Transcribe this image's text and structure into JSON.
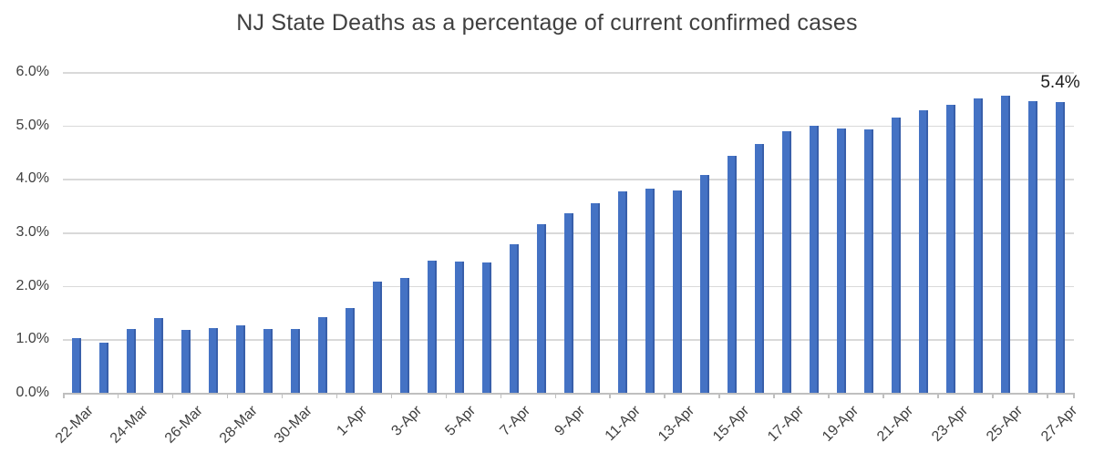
{
  "chart_data": {
    "type": "bar",
    "title": "NJ State Deaths as a percentage of current confirmed cases",
    "categories": [
      "22-Mar",
      "23-Mar",
      "24-Mar",
      "25-Mar",
      "26-Mar",
      "27-Mar",
      "28-Mar",
      "29-Mar",
      "30-Mar",
      "31-Mar",
      "1-Apr",
      "2-Apr",
      "3-Apr",
      "4-Apr",
      "5-Apr",
      "6-Apr",
      "7-Apr",
      "8-Apr",
      "9-Apr",
      "10-Apr",
      "11-Apr",
      "12-Apr",
      "13-Apr",
      "14-Apr",
      "15-Apr",
      "16-Apr",
      "17-Apr",
      "18-Apr",
      "19-Apr",
      "20-Apr",
      "21-Apr",
      "22-Apr",
      "23-Apr",
      "24-Apr",
      "25-Apr",
      "26-Apr",
      "27-Apr"
    ],
    "values": [
      1.03,
      0.93,
      1.19,
      1.39,
      1.17,
      1.21,
      1.26,
      1.19,
      1.19,
      1.42,
      1.59,
      2.08,
      2.15,
      2.47,
      2.45,
      2.43,
      2.77,
      3.16,
      3.36,
      3.55,
      3.76,
      3.81,
      3.79,
      4.08,
      4.44,
      4.66,
      4.89,
      5.0,
      4.94,
      4.93,
      5.15,
      5.28,
      5.38,
      5.51,
      5.56,
      5.45,
      5.44
    ],
    "unit": "%",
    "xlabel": "",
    "ylabel": "",
    "ylim": [
      0,
      6
    ],
    "ytick_step": 1.0,
    "ytick_labels": [
      "0.0%",
      "1.0%",
      "2.0%",
      "3.0%",
      "4.0%",
      "5.0%",
      "6.0%"
    ],
    "xtick_label_interval": 2,
    "grid": "horizontal",
    "legend": "none",
    "annotation": {
      "text": "5.4%",
      "category": "27-Apr"
    },
    "colors": {
      "bar": "#4472C4",
      "bar_edge_shade": "rgba(20,40,90,0.25)",
      "gridline": "#D9D9D9",
      "axis": "#BFBFBF",
      "tick_text": "#404040",
      "title_text": "#404040",
      "annotation_text": "#1a1a1a",
      "background": "#FFFFFF"
    }
  }
}
